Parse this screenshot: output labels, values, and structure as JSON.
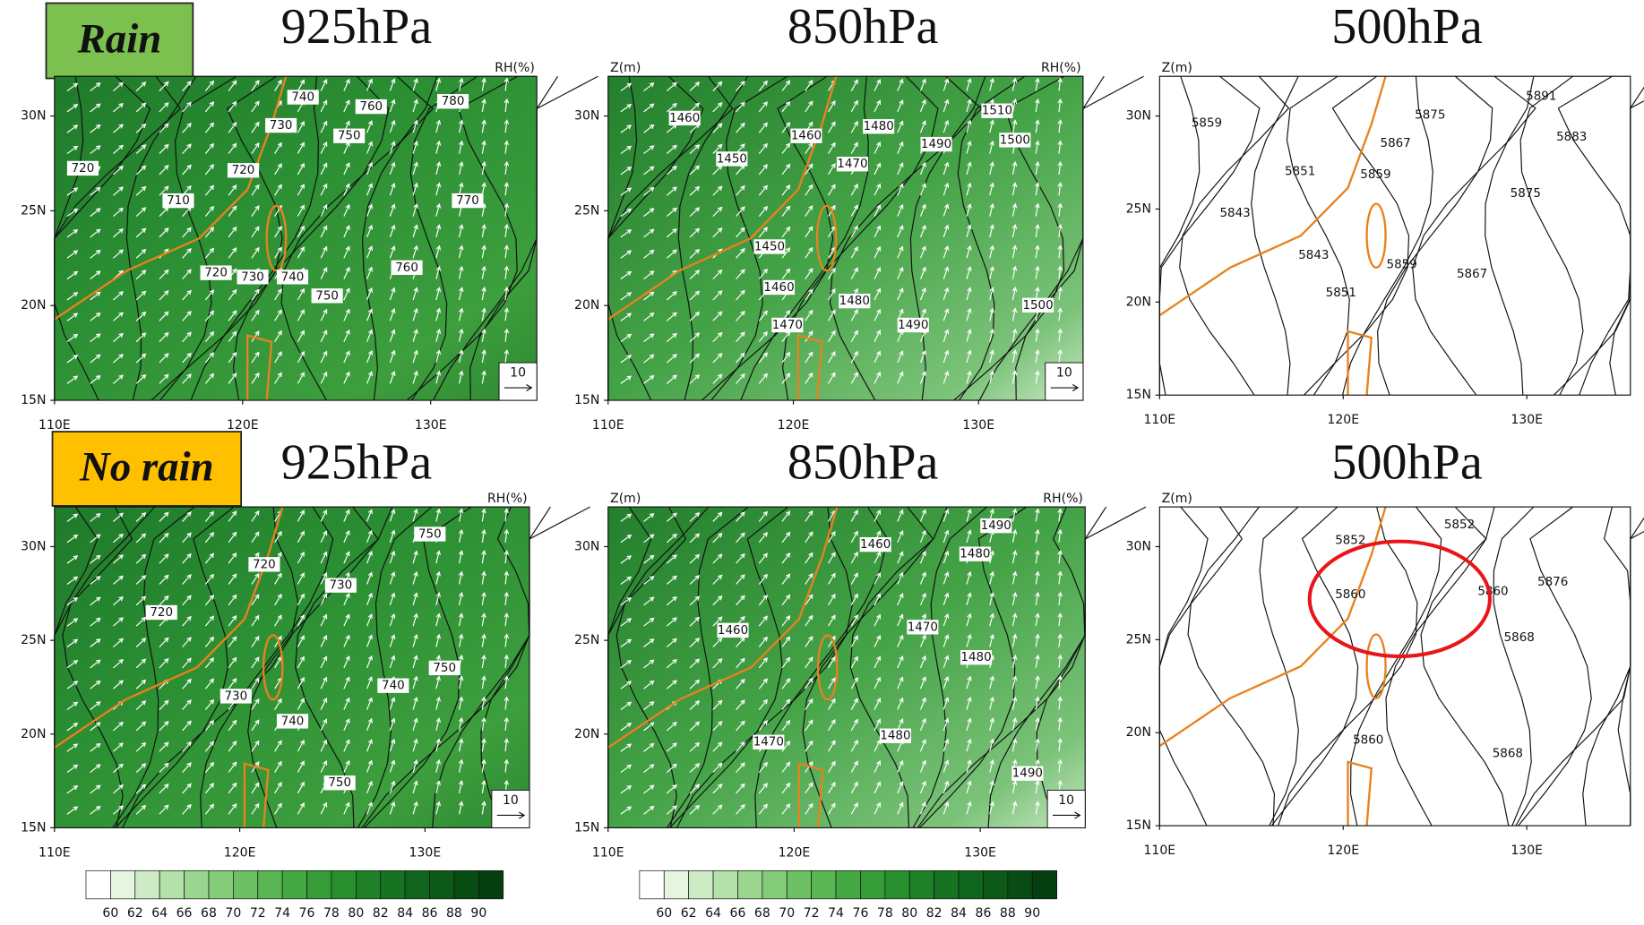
{
  "axes": {
    "y_labels": [
      "30N",
      "25N",
      "20N",
      "15N"
    ],
    "x_labels": [
      "110E",
      "120E",
      "130E"
    ]
  },
  "colorbar": {
    "labels": [
      60,
      62,
      64,
      66,
      68,
      70,
      72,
      74,
      76,
      78,
      80,
      82,
      84,
      86,
      88,
      90
    ]
  },
  "rows": [
    {
      "label": "Rain",
      "panels": [
        {
          "title": "925hPa",
          "right_label": "RH(%)",
          "vector_ref": "10",
          "contour_labels": [
            740,
            780,
            760,
            730,
            750,
            720,
            720,
            710,
            770,
            760,
            720,
            730,
            740,
            750
          ]
        },
        {
          "title": "850hPa",
          "left_label": "Z(m)",
          "right_label": "RH(%)",
          "vector_ref": "10",
          "contour_labels": [
            1510,
            1460,
            1460,
            1480,
            1500,
            1450,
            1490,
            1470,
            1450,
            1460,
            1480,
            1500,
            1470,
            1490
          ]
        },
        {
          "title": "500hPa",
          "left_label": "Z(m)",
          "contour_labels": [
            5891,
            5875,
            5859,
            5867,
            5883,
            5851,
            5859,
            5875,
            5843,
            5843,
            5859,
            5867,
            5851
          ]
        }
      ]
    },
    {
      "label": "No rain",
      "panels": [
        {
          "title": "925hPa",
          "right_label": "RH(%)",
          "vector_ref": "10",
          "contour_labels": [
            750,
            720,
            730,
            720,
            750,
            740,
            730,
            740,
            750
          ]
        },
        {
          "title": "850hPa",
          "left_label": "Z(m)",
          "right_label": "RH(%)",
          "vector_ref": "10",
          "contour_labels": [
            1490,
            1460,
            1480,
            1470,
            1460,
            1480,
            1480,
            1470,
            1490
          ]
        },
        {
          "title": "500hPa",
          "left_label": "Z(m)",
          "contour_labels": [
            5852,
            5852,
            5860,
            5860,
            5876,
            5868,
            5860,
            5868
          ]
        }
      ]
    }
  ]
}
